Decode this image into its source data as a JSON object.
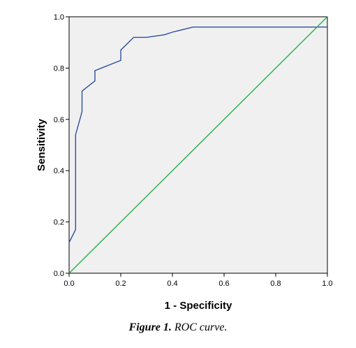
{
  "chart_data": {
    "type": "line",
    "xlabel": "1 - Specificity",
    "ylabel": "Sensitivity",
    "xlim": [
      0,
      1
    ],
    "ylim": [
      0,
      1
    ],
    "x_ticks": [
      "0.0",
      "0.2",
      "0.4",
      "0.6",
      "0.8",
      "1.0"
    ],
    "y_ticks": [
      "0.0",
      "0.2",
      "0.4",
      "0.6",
      "0.8",
      "1.0"
    ],
    "grid": false,
    "legend": "none",
    "background_color": "#f0f0f0",
    "series": [
      {
        "color": "#2d4f9e",
        "x": [
          0.0,
          0.0,
          0.025,
          0.025,
          0.05,
          0.05,
          0.05,
          0.1,
          0.1,
          0.2,
          0.2,
          0.25,
          0.3,
          0.37,
          0.4,
          0.48,
          1.0
        ],
        "y": [
          0.12,
          0.12,
          0.17,
          0.54,
          0.63,
          0.67,
          0.71,
          0.75,
          0.79,
          0.83,
          0.87,
          0.92,
          0.92,
          0.93,
          0.94,
          0.96,
          0.96
        ]
      },
      {
        "color": "#22b14c",
        "x": [
          0.0,
          1.0
        ],
        "y": [
          0.0,
          1.0
        ]
      }
    ]
  },
  "caption": {
    "number": "Figure 1.",
    "text": "ROC curve."
  }
}
